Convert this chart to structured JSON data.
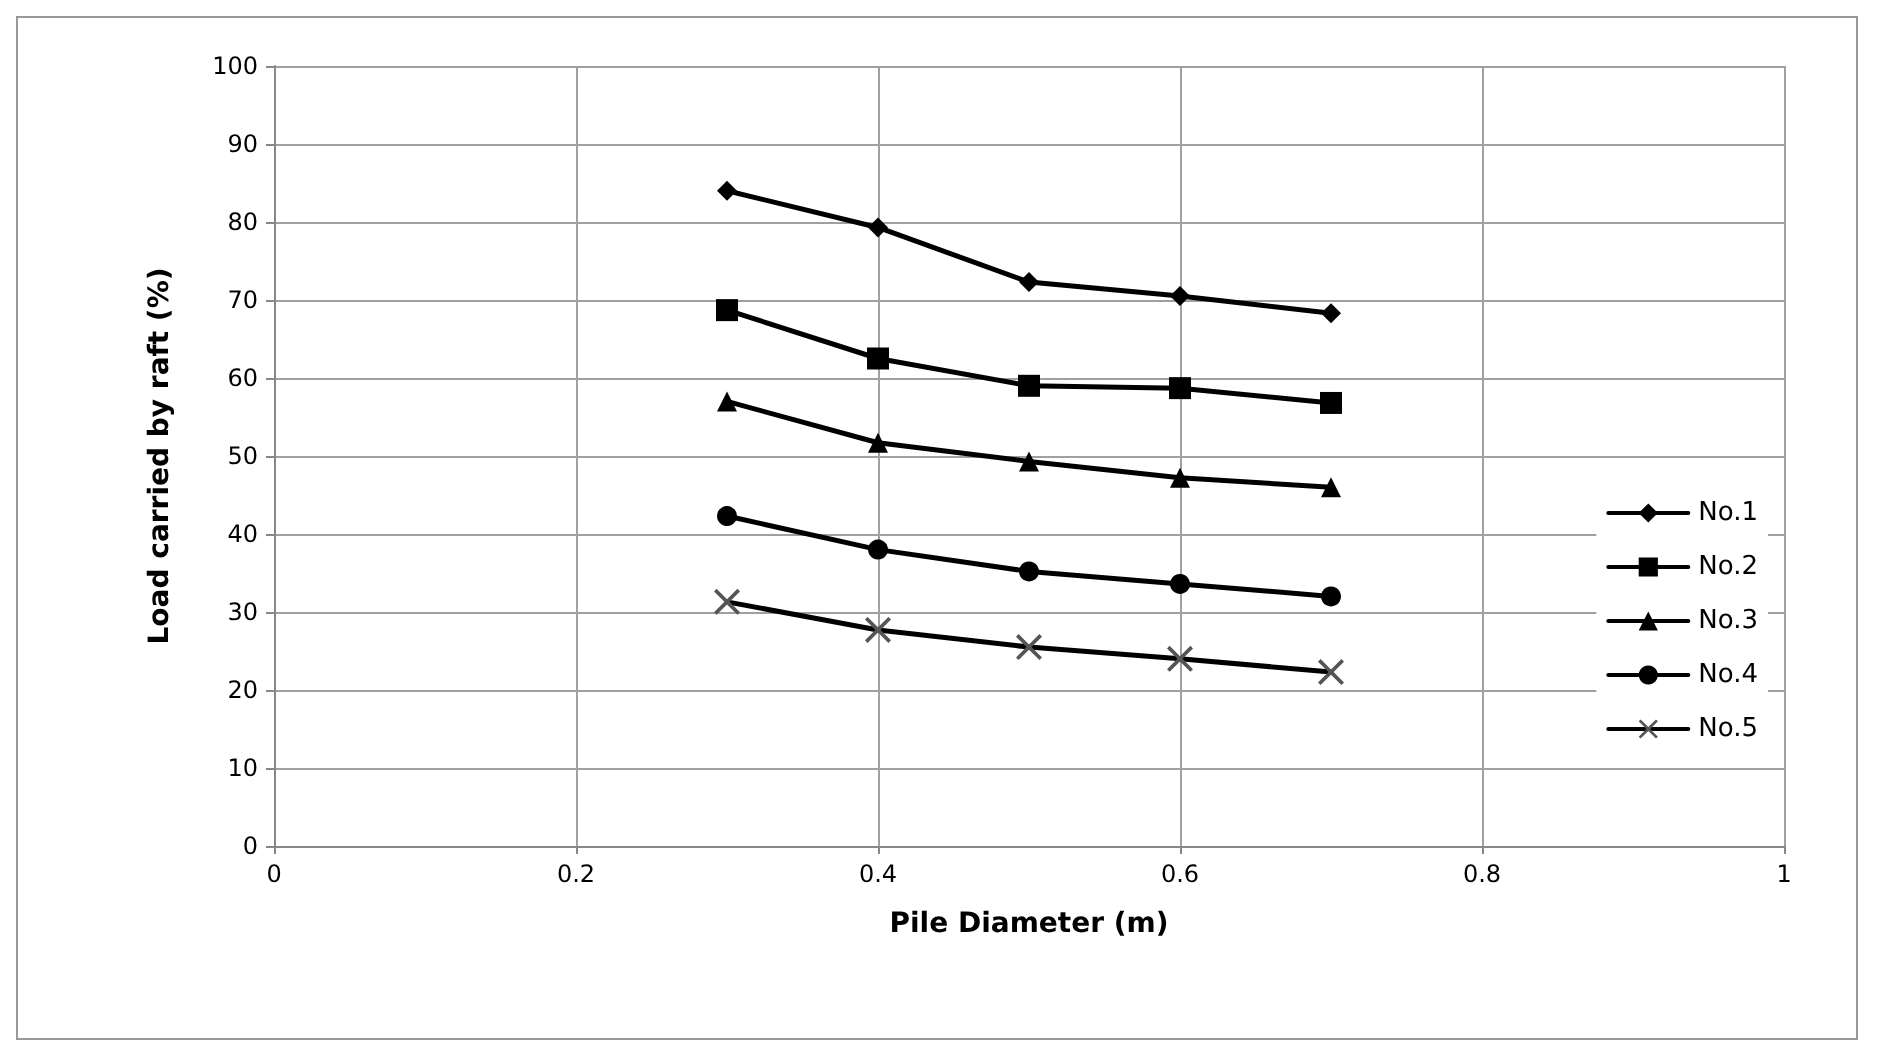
{
  "chart_data": {
    "type": "line",
    "xlabel": "Pile Diameter (m)",
    "ylabel": "Load carried by raft (%)",
    "x": [
      0.3,
      0.4,
      0.5,
      0.6,
      0.7
    ],
    "series": [
      {
        "name": "No.1",
        "color": "#000000",
        "marker": "diamond",
        "values": [
          84,
          79.3,
          72.3,
          70.5,
          68.3
        ]
      },
      {
        "name": "No.2",
        "color": "#000000",
        "marker": "square",
        "values": [
          68.7,
          62.5,
          59,
          58.7,
          56.8
        ]
      },
      {
        "name": "No.3",
        "color": "#000000",
        "marker": "triangle",
        "values": [
          57,
          51.7,
          49.3,
          47.2,
          46
        ]
      },
      {
        "name": "No.4",
        "color": "#000000",
        "marker": "circle",
        "values": [
          42.3,
          38,
          35.2,
          33.6,
          32
        ]
      },
      {
        "name": "No.5",
        "color": "#000000",
        "marker": "cross",
        "values": [
          31.3,
          27.7,
          25.5,
          24,
          22.3
        ]
      }
    ],
    "xlim": [
      0,
      1
    ],
    "xticks": [
      0,
      0.2,
      0.4,
      0.6,
      0.8,
      1
    ],
    "ylim": [
      0,
      100
    ],
    "yticks": [
      0,
      10,
      20,
      30,
      40,
      50,
      60,
      70,
      80,
      90,
      100
    ],
    "grid": true,
    "legend": "right",
    "line_style": "solid"
  }
}
